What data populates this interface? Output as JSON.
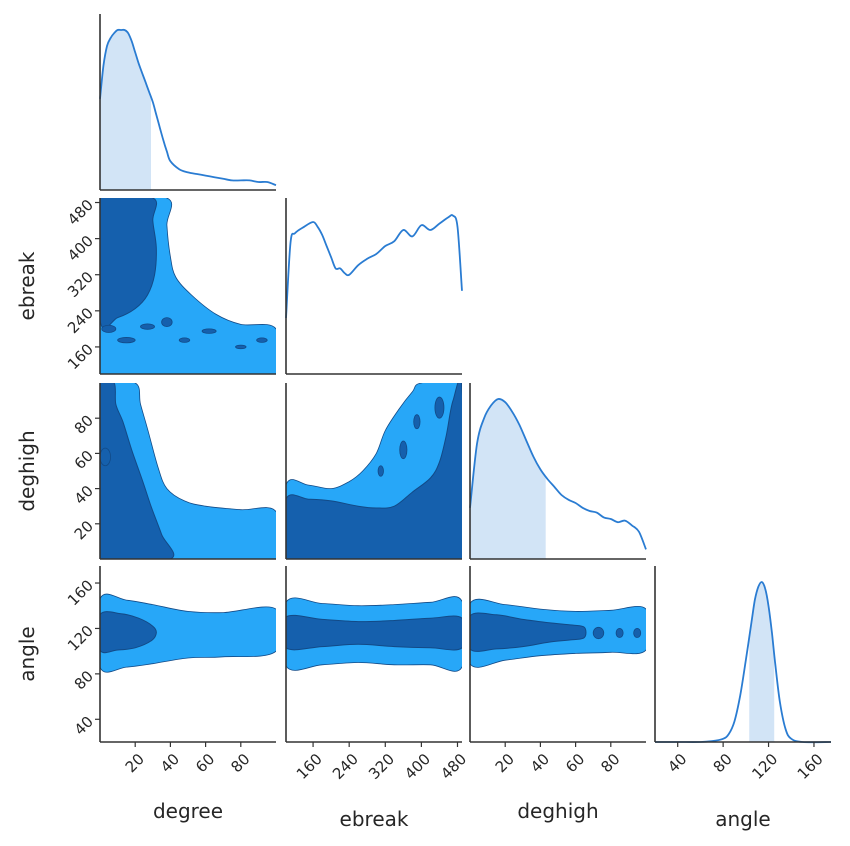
{
  "chart_data": {
    "type": "corner",
    "parameters": [
      "degree",
      "ebreak",
      "deghigh",
      "angle"
    ],
    "axis_labels": {
      "x": [
        "degree",
        "ebreak",
        "deghigh",
        "angle"
      ],
      "y": [
        "ebreak",
        "deghigh",
        "angle"
      ]
    },
    "ranges": {
      "degree": [
        0,
        100
      ],
      "ebreak": [
        100,
        490
      ],
      "deghigh": [
        0,
        100
      ],
      "angle": [
        20,
        175
      ]
    },
    "ticks": {
      "degree": [
        "20",
        "40",
        "60",
        "80"
      ],
      "ebreak": [
        "160",
        "240",
        "320",
        "400",
        "480"
      ],
      "deghigh": [
        "20",
        "40",
        "60",
        "80"
      ],
      "angle": [
        "40",
        "80",
        "120",
        "160"
      ]
    },
    "colors": {
      "outer_contour": "#27a7f8",
      "inner_contour": "#1560ad",
      "contour_edge": "#124a87",
      "kde_line": "#2a7cd2",
      "credible_fill": "#d2e4f6",
      "axes": "#333333"
    },
    "marginals": {
      "degree": {
        "x": [
          0,
          2,
          4,
          6,
          8,
          10,
          12,
          14,
          16,
          18,
          20,
          22,
          24,
          26,
          28,
          30,
          32,
          34,
          36,
          38,
          40,
          45,
          50,
          55,
          60,
          65,
          70,
          75,
          80,
          85,
          90,
          95,
          100
        ],
        "density": [
          0.57,
          0.78,
          0.9,
          0.95,
          0.98,
          1.0,
          1.0,
          1.0,
          0.98,
          0.93,
          0.86,
          0.79,
          0.73,
          0.67,
          0.61,
          0.55,
          0.47,
          0.39,
          0.31,
          0.24,
          0.18,
          0.13,
          0.11,
          0.1,
          0.09,
          0.08,
          0.07,
          0.06,
          0.06,
          0.06,
          0.05,
          0.05,
          0.03
        ],
        "credible_interval": [
          0,
          29
        ]
      },
      "ebreak": {
        "x": [
          100,
          110,
          120,
          140,
          160,
          170,
          180,
          190,
          200,
          210,
          220,
          230,
          240,
          260,
          280,
          300,
          320,
          340,
          360,
          380,
          400,
          420,
          440,
          460,
          470,
          480,
          490
        ],
        "density": [
          0.35,
          0.82,
          0.88,
          0.92,
          0.95,
          0.92,
          0.87,
          0.8,
          0.73,
          0.66,
          0.66,
          0.63,
          0.62,
          0.68,
          0.72,
          0.75,
          0.8,
          0.83,
          0.9,
          0.86,
          0.93,
          0.9,
          0.94,
          0.98,
          0.99,
          0.92,
          0.52
        ],
        "credible_interval": null
      },
      "deghigh": {
        "x": [
          0,
          4,
          8,
          12,
          16,
          20,
          24,
          28,
          32,
          36,
          40,
          44,
          48,
          52,
          56,
          60,
          64,
          68,
          72,
          76,
          80,
          84,
          88,
          92,
          96,
          100
        ],
        "density": [
          0.32,
          0.72,
          0.88,
          0.96,
          1.0,
          0.98,
          0.92,
          0.84,
          0.74,
          0.64,
          0.56,
          0.5,
          0.45,
          0.4,
          0.37,
          0.35,
          0.32,
          0.3,
          0.29,
          0.26,
          0.25,
          0.23,
          0.24,
          0.21,
          0.17,
          0.06
        ],
        "credible_interval": [
          0,
          43
        ]
      },
      "angle": {
        "x": [
          20,
          40,
          60,
          70,
          80,
          85,
          90,
          95,
          100,
          105,
          108,
          111,
          114,
          117,
          120,
          123,
          126,
          130,
          135,
          140,
          150,
          175
        ],
        "density": [
          0.0,
          0.0,
          0.0,
          0.005,
          0.02,
          0.05,
          0.13,
          0.29,
          0.51,
          0.75,
          0.89,
          0.97,
          1.0,
          0.96,
          0.85,
          0.68,
          0.48,
          0.25,
          0.08,
          0.02,
          0.0,
          0.0
        ],
        "credible_interval": [
          103,
          125
        ]
      }
    },
    "joint": {
      "ebreak|degree": {
        "inner": [
          [
            0,
            490
          ],
          [
            30,
            490
          ],
          [
            30,
            440
          ],
          [
            32,
            380
          ],
          [
            31,
            320
          ],
          [
            27,
            275
          ],
          [
            20,
            245
          ],
          [
            10,
            225
          ],
          [
            0,
            220
          ]
        ],
        "outer": [
          [
            0,
            490
          ],
          [
            38,
            490
          ],
          [
            38,
            430
          ],
          [
            40,
            360
          ],
          [
            43,
            315
          ],
          [
            52,
            275
          ],
          [
            66,
            232
          ],
          [
            80,
            210
          ],
          [
            100,
            200
          ],
          [
            100,
            100
          ],
          [
            0,
            100
          ]
        ],
        "inner_islands": [
          [
            5,
            200,
            4,
            8
          ],
          [
            15,
            175,
            5,
            6
          ],
          [
            27,
            205,
            4,
            6
          ],
          [
            38,
            215,
            3,
            10
          ],
          [
            48,
            175,
            3,
            5
          ],
          [
            62,
            195,
            4,
            5
          ],
          [
            80,
            160,
            3,
            4
          ],
          [
            92,
            175,
            3,
            5
          ]
        ]
      },
      "deghigh|degree": {
        "inner": [
          [
            0,
            100
          ],
          [
            8,
            100
          ],
          [
            9,
            88
          ],
          [
            13,
            78
          ],
          [
            18,
            62
          ],
          [
            24,
            45
          ],
          [
            29,
            30
          ],
          [
            35,
            14
          ],
          [
            40,
            0
          ],
          [
            0,
            0
          ]
        ],
        "outer": [
          [
            0,
            100
          ],
          [
            20,
            100
          ],
          [
            23,
            88
          ],
          [
            27,
            74
          ],
          [
            33,
            52
          ],
          [
            38,
            40
          ],
          [
            48,
            33
          ],
          [
            60,
            30
          ],
          [
            80,
            28
          ],
          [
            100,
            27
          ],
          [
            100,
            0
          ],
          [
            0,
            0
          ]
        ],
        "inner_islands": [
          [
            3,
            58,
            3,
            5
          ]
        ]
      },
      "deghigh|ebreak": {
        "inner": [
          [
            100,
            0
          ],
          [
            100,
            34
          ],
          [
            150,
            34
          ],
          [
            200,
            33
          ],
          [
            260,
            30
          ],
          [
            300,
            29
          ],
          [
            340,
            30
          ],
          [
            380,
            38
          ],
          [
            420,
            46
          ],
          [
            440,
            55
          ],
          [
            455,
            70
          ],
          [
            470,
            90
          ],
          [
            490,
            96
          ],
          [
            490,
            0
          ]
        ],
        "outer": [
          [
            100,
            0
          ],
          [
            100,
            42
          ],
          [
            150,
            42
          ],
          [
            200,
            40
          ],
          [
            240,
            44
          ],
          [
            270,
            50
          ],
          [
            300,
            60
          ],
          [
            320,
            73
          ],
          [
            350,
            85
          ],
          [
            380,
            95
          ],
          [
            400,
            100
          ],
          [
            490,
            100
          ],
          [
            490,
            0
          ]
        ],
        "inner_islands": [
          [
            440,
            86,
            10,
            6
          ],
          [
            360,
            62,
            8,
            5
          ],
          [
            390,
            78,
            7,
            4
          ],
          [
            310,
            50,
            6,
            3
          ]
        ]
      },
      "angle|degree": {
        "inner": [
          [
            0,
            132
          ],
          [
            12,
            133
          ],
          [
            22,
            129
          ],
          [
            30,
            122
          ],
          [
            32,
            116
          ],
          [
            29,
            109
          ],
          [
            20,
            103
          ],
          [
            10,
            101
          ],
          [
            0,
            101
          ]
        ],
        "outer": [
          [
            0,
            146
          ],
          [
            15,
            145
          ],
          [
            30,
            141
          ],
          [
            50,
            135
          ],
          [
            70,
            134
          ],
          [
            100,
            137
          ],
          [
            100,
            100
          ],
          [
            70,
            95
          ],
          [
            50,
            94
          ],
          [
            30,
            89
          ],
          [
            15,
            86
          ],
          [
            0,
            86
          ]
        ],
        "inner_islands": []
      },
      "angle|ebreak": {
        "inner": [
          [
            100,
            130
          ],
          [
            180,
            128
          ],
          [
            260,
            126
          ],
          [
            340,
            127
          ],
          [
            420,
            129
          ],
          [
            490,
            129
          ],
          [
            490,
            103
          ],
          [
            420,
            103
          ],
          [
            340,
            104
          ],
          [
            260,
            106
          ],
          [
            180,
            104
          ],
          [
            100,
            103
          ]
        ],
        "outer": [
          [
            100,
            143
          ],
          [
            180,
            142
          ],
          [
            260,
            140
          ],
          [
            340,
            141
          ],
          [
            420,
            143
          ],
          [
            490,
            144
          ],
          [
            490,
            86
          ],
          [
            420,
            88
          ],
          [
            340,
            88
          ],
          [
            260,
            90
          ],
          [
            180,
            88
          ],
          [
            100,
            87
          ]
        ],
        "inner_islands": []
      },
      "angle|deghigh": {
        "inner": [
          [
            0,
            131
          ],
          [
            15,
            132
          ],
          [
            30,
            128
          ],
          [
            45,
            125
          ],
          [
            58,
            123
          ],
          [
            65,
            121
          ],
          [
            65,
            112
          ],
          [
            58,
            110
          ],
          [
            45,
            108
          ],
          [
            30,
            104
          ],
          [
            15,
            102
          ],
          [
            0,
            102
          ]
        ],
        "outer": [
          [
            0,
            142
          ],
          [
            20,
            141
          ],
          [
            40,
            137
          ],
          [
            60,
            135
          ],
          [
            80,
            136
          ],
          [
            100,
            137
          ],
          [
            100,
            101
          ],
          [
            80,
            99
          ],
          [
            60,
            98
          ],
          [
            40,
            96
          ],
          [
            20,
            92
          ],
          [
            0,
            89
          ]
        ],
        "inner_islands": [
          [
            73,
            116,
            3,
            5
          ],
          [
            85,
            116,
            2,
            4
          ],
          [
            95,
            116,
            2,
            4
          ]
        ]
      }
    }
  }
}
